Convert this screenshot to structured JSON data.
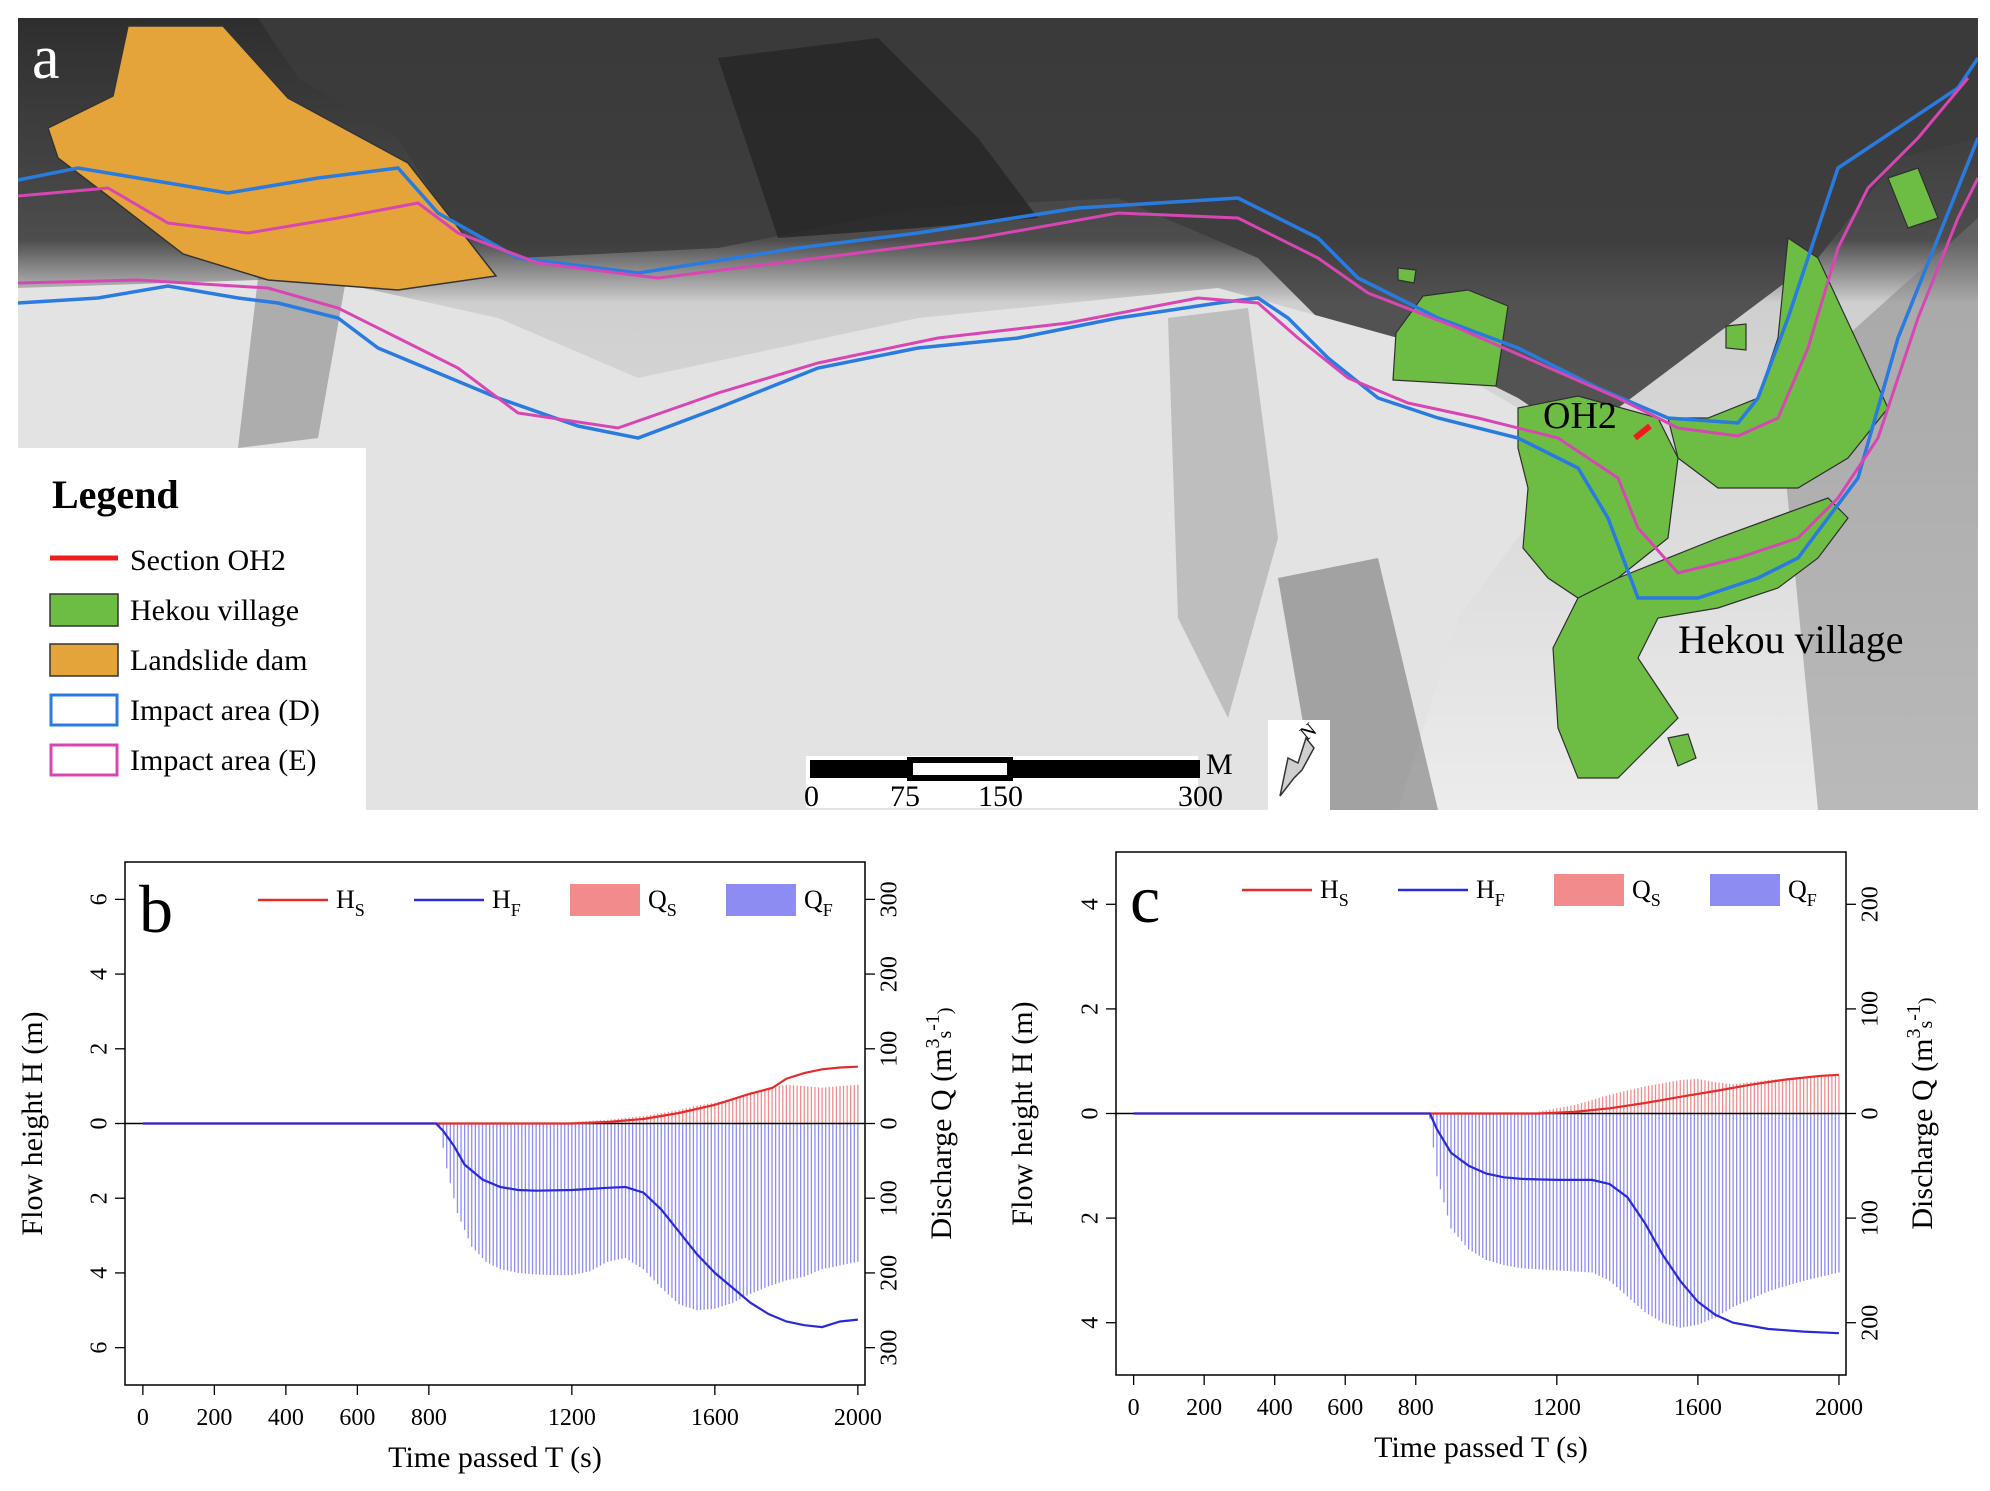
{
  "panel_a": {
    "label": "a",
    "legend": {
      "title": "Legend",
      "items": [
        {
          "label": "Section OH2",
          "kind": "line",
          "color": "#ee1c1c"
        },
        {
          "label": "Hekou village",
          "kind": "fill",
          "color": "#6dbd45"
        },
        {
          "label": "Landslide dam",
          "kind": "fill",
          "color": "#e5a43a"
        },
        {
          "label": "Impact area (D)",
          "kind": "outline",
          "color": "#2a7be0"
        },
        {
          "label": "Impact area (E)",
          "kind": "outline",
          "color": "#d846b4"
        }
      ]
    },
    "annotations": {
      "section": "OH2",
      "village": "Hekou village"
    },
    "scale_bar": {
      "ticks": [
        "0",
        "75",
        "150",
        "300"
      ],
      "unit": "M"
    },
    "north_arrow": "N",
    "colors": {
      "hillshade_dark": "#3a3a3a",
      "hillshade_light": "#e8e8e8"
    }
  },
  "chart_data": [
    {
      "panel": "b",
      "type": "line",
      "legend": [
        "HS",
        "HF",
        "QS",
        "QF"
      ],
      "legend_labels": [
        {
          "main": "H",
          "sub": "S"
        },
        {
          "main": "H",
          "sub": "F"
        },
        {
          "main": "Q",
          "sub": "S"
        },
        {
          "main": "Q",
          "sub": "F"
        }
      ],
      "xlabel": "Time passed T (s)",
      "ylabel": "Flow height H (m)",
      "y2label_parts": {
        "a": "Discharge Q (m",
        "sup1": "3",
        "b": "s",
        "sup2": "-1",
        "c": ")"
      },
      "xlim": [
        -50,
        2020
      ],
      "x_ticks": [
        0,
        200,
        400,
        600,
        800,
        1200,
        1600,
        2000
      ],
      "y_ticks": [
        6,
        4,
        2,
        0,
        2,
        4,
        6
      ],
      "y2_ticks": [
        300,
        200,
        100,
        0,
        100,
        200,
        300
      ],
      "grid": false,
      "legend_position": "top",
      "colors": {
        "HS": "#e52b2b",
        "HF": "#2a2ad8",
        "QS": "#f28b8b",
        "QF": "#8c8cf2"
      },
      "series": [
        {
          "name": "HS",
          "x": [
            0,
            1200,
            1300,
            1400,
            1500,
            1600,
            1700,
            1760,
            1800,
            1850,
            1900,
            1950,
            2000
          ],
          "y": [
            0,
            0,
            0.04,
            0.12,
            0.28,
            0.5,
            0.8,
            0.95,
            1.2,
            1.35,
            1.45,
            1.5,
            1.52
          ]
        },
        {
          "name": "HF",
          "x": [
            0,
            820,
            840,
            870,
            900,
            950,
            1000,
            1050,
            1100,
            1200,
            1300,
            1350,
            1400,
            1450,
            1500,
            1550,
            1600,
            1650,
            1700,
            1750,
            1800,
            1850,
            1900,
            1950,
            2000
          ],
          "y": [
            0,
            0,
            -0.2,
            -0.6,
            -1.1,
            -1.5,
            -1.7,
            -1.78,
            -1.8,
            -1.78,
            -1.72,
            -1.7,
            -1.85,
            -2.3,
            -2.9,
            -3.5,
            -4.0,
            -4.4,
            -4.8,
            -5.1,
            -5.3,
            -5.4,
            -5.45,
            -5.3,
            -5.25
          ]
        },
        {
          "name": "QS",
          "x": [
            1200,
            1300,
            1400,
            1500,
            1550,
            1600,
            1650,
            1700,
            1750,
            1800,
            1850,
            1900,
            1950,
            2000
          ],
          "y": [
            2,
            5,
            10,
            18,
            24,
            28,
            33,
            40,
            48,
            52,
            50,
            48,
            50,
            52
          ]
        },
        {
          "name": "QF",
          "x": [
            830,
            850,
            880,
            920,
            960,
            1000,
            1050,
            1100,
            1150,
            1200,
            1250,
            1300,
            1350,
            1400,
            1450,
            1500,
            1550,
            1600,
            1650,
            1700,
            1750,
            1800,
            1850,
            1900,
            1950,
            2000
          ],
          "y": [
            -5,
            -60,
            -120,
            -165,
            -185,
            -195,
            -200,
            -202,
            -203,
            -203,
            -198,
            -185,
            -180,
            -195,
            -220,
            -242,
            -250,
            -248,
            -240,
            -228,
            -218,
            -210,
            -205,
            -195,
            -190,
            -185
          ]
        }
      ]
    },
    {
      "panel": "c",
      "type": "line",
      "legend": [
        "HS",
        "HF",
        "QS",
        "QF"
      ],
      "legend_labels": [
        {
          "main": "H",
          "sub": "S"
        },
        {
          "main": "H",
          "sub": "F"
        },
        {
          "main": "Q",
          "sub": "S"
        },
        {
          "main": "Q",
          "sub": "F"
        }
      ],
      "xlabel": "Time passed T (s)",
      "ylabel": "Flow height H (m)",
      "y2label_parts": {
        "a": "Discharge Q (m",
        "sup1": "3",
        "b": "s",
        "sup2": "-1",
        "c": ")"
      },
      "xlim": [
        -50,
        2020
      ],
      "x_ticks": [
        0,
        200,
        400,
        600,
        800,
        1200,
        1600,
        2000
      ],
      "y_ticks": [
        4,
        2,
        0,
        2,
        4
      ],
      "y2_ticks": [
        200,
        100,
        0,
        100,
        200
      ],
      "grid": false,
      "legend_position": "top",
      "colors": {
        "HS": "#e52b2b",
        "HF": "#2a2ad8",
        "QS": "#f28b8b",
        "QF": "#8c8cf2"
      },
      "series": [
        {
          "name": "HS",
          "x": [
            0,
            1150,
            1250,
            1350,
            1450,
            1550,
            1650,
            1750,
            1850,
            1950,
            2000
          ],
          "y": [
            0,
            0,
            0.03,
            0.1,
            0.2,
            0.32,
            0.43,
            0.55,
            0.65,
            0.72,
            0.74
          ]
        },
        {
          "name": "HF",
          "x": [
            0,
            840,
            860,
            900,
            950,
            1000,
            1050,
            1100,
            1200,
            1300,
            1350,
            1400,
            1450,
            1500,
            1550,
            1600,
            1650,
            1700,
            1800,
            1900,
            2000
          ],
          "y": [
            0,
            0,
            -0.3,
            -0.75,
            -1.0,
            -1.15,
            -1.22,
            -1.25,
            -1.27,
            -1.27,
            -1.35,
            -1.6,
            -2.1,
            -2.7,
            -3.2,
            -3.6,
            -3.85,
            -4.0,
            -4.12,
            -4.17,
            -4.2
          ]
        },
        {
          "name": "QS",
          "x": [
            1150,
            1250,
            1350,
            1450,
            1550,
            1600,
            1650,
            1700,
            1800,
            1900,
            2000
          ],
          "y": [
            2,
            8,
            18,
            26,
            32,
            33,
            30,
            28,
            32,
            35,
            36
          ]
        },
        {
          "name": "QF",
          "x": [
            840,
            860,
            900,
            950,
            1000,
            1050,
            1100,
            1200,
            1300,
            1350,
            1400,
            1450,
            1500,
            1550,
            1600,
            1650,
            1700,
            1800,
            1900,
            2000
          ],
          "y": [
            -5,
            -60,
            -110,
            -130,
            -140,
            -145,
            -148,
            -150,
            -152,
            -160,
            -175,
            -190,
            -200,
            -205,
            -202,
            -195,
            -185,
            -170,
            -160,
            -152
          ]
        }
      ]
    }
  ],
  "panel_b": {
    "label": "b"
  },
  "panel_c": {
    "label": "c"
  }
}
